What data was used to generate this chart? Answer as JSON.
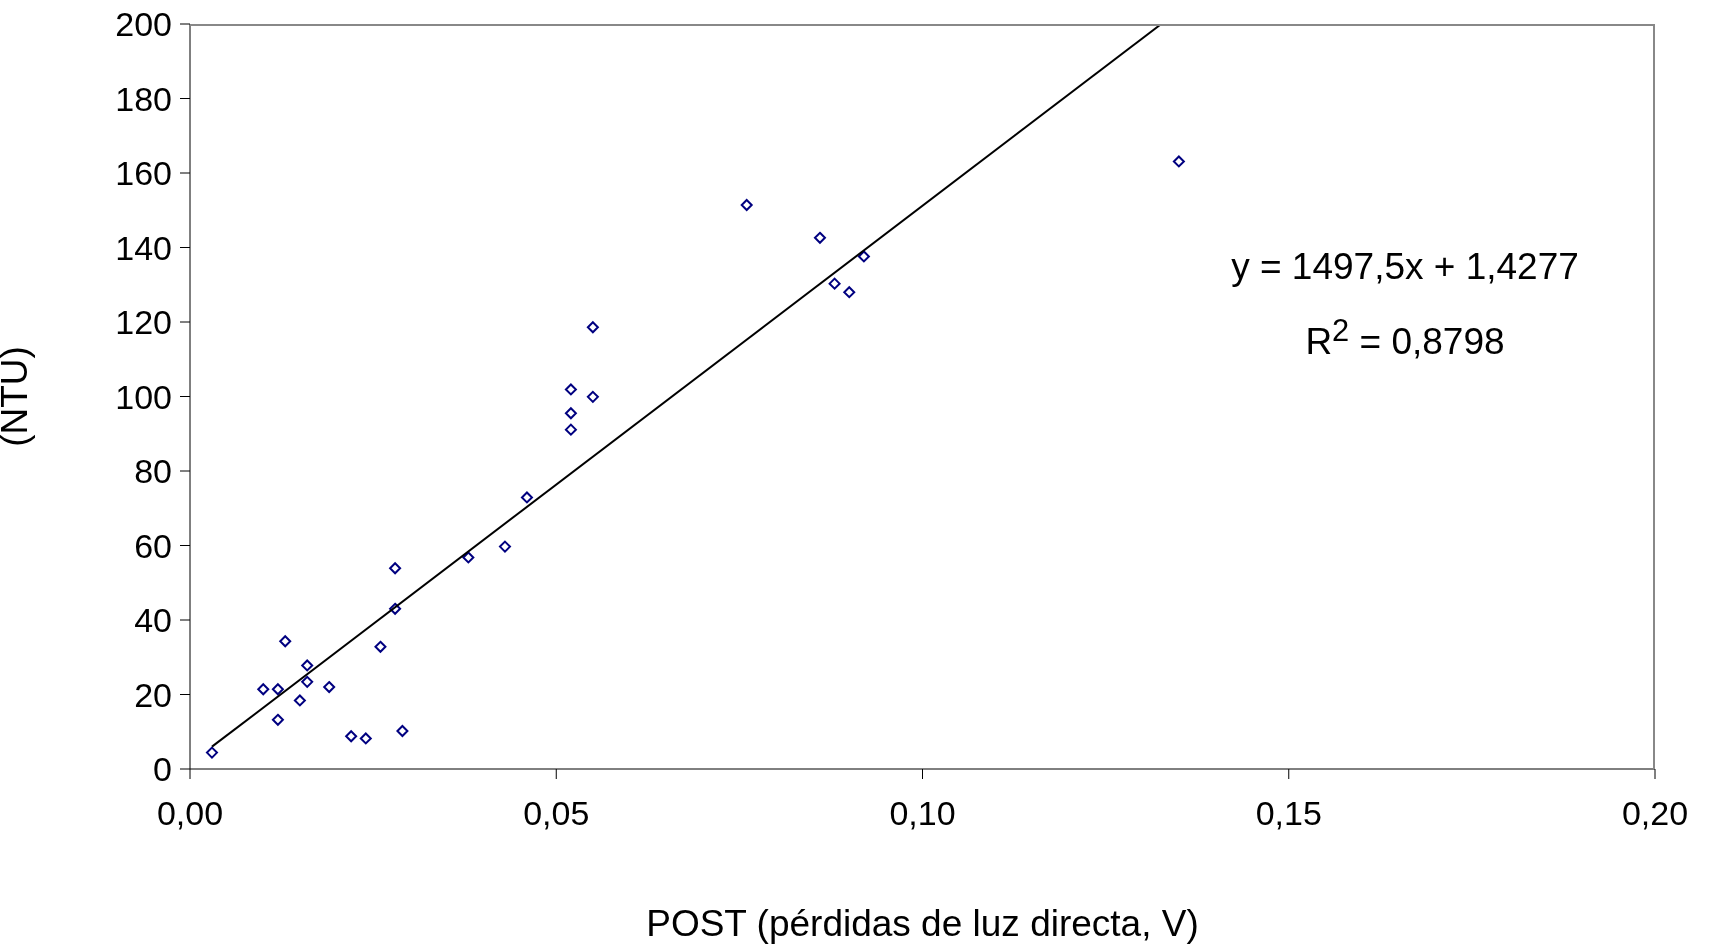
{
  "chart_data": {
    "type": "scatter",
    "xlabel": "POST (pérdidas de luz directa, V)",
    "ylabel": "(NTU)",
    "xlim": [
      0,
      0.2
    ],
    "xticks": [
      {
        "value": 0,
        "label": "0,00"
      },
      {
        "value": 0.05,
        "label": "0,05"
      },
      {
        "value": 0.1,
        "label": "0,10"
      },
      {
        "value": 0.15,
        "label": "0,15"
      },
      {
        "value": 0.2,
        "label": "0,20"
      }
    ],
    "ylim": [
      0,
      200
    ],
    "yticks": [
      0,
      20,
      40,
      60,
      80,
      100,
      120,
      140,
      160,
      180,
      200
    ],
    "annotations": [
      "y = 1497,5x + 1,4277",
      "R$^{2}$ = 0,8798"
    ],
    "series": [
      {
        "marker": "diamond",
        "color": "#000080",
        "x": [
          0.003,
          0.01,
          0.012,
          0.012,
          0.013,
          0.015,
          0.016,
          0.016,
          0.019,
          0.022,
          0.024,
          0.026,
          0.028,
          0.028,
          0.029,
          0.038,
          0.043,
          0.046,
          0.052,
          0.052,
          0.052,
          0.055,
          0.055,
          0.076,
          0.086,
          0.088,
          0.09,
          0.092,
          0.135
        ],
        "values": [
          4.4,
          21.4,
          21.4,
          13.2,
          34.3,
          18.4,
          27.8,
          23.4,
          22.0,
          8.8,
          8.2,
          32.8,
          53.9,
          43.0,
          10.2,
          56.8,
          59.7,
          72.9,
          101.9,
          95.5,
          91.1,
          118.6,
          99.9,
          151.4,
          142.6,
          130.3,
          128.0,
          137.6,
          163.1
        ]
      },
      {
        "type": "line",
        "color": "#000000",
        "x": [
          0.003,
          0.1326
        ],
        "values": [
          6,
          200
        ]
      }
    ]
  }
}
